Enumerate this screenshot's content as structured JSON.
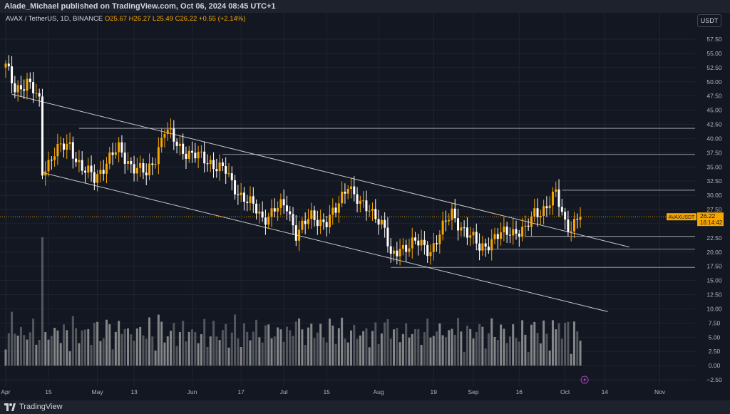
{
  "header": {
    "publisher_text": "Alade_Michael published on TradingView.com, Oct 06, 2024 08:45 UTC+1"
  },
  "symbol": {
    "title": "AVAX / TetherUS, 1D, BINANCE",
    "ohlc": "O25.67 H26.27 L25.49 C26.22 +0.55 (+2.14%)",
    "currency": "USDT"
  },
  "price_tag": {
    "name": "AVAXUSDT",
    "price": "26.22",
    "countdown": "16:14:42",
    "value": 26.22
  },
  "footer": {
    "brand": "TradingView"
  },
  "colors": {
    "background": "#131722",
    "up": "#f7a600",
    "down": "#ffffff",
    "price_line": "#f7a600",
    "channel": "#c8c8c8",
    "grid": "#1f2431"
  },
  "chart_data": {
    "type": "candlestick",
    "x_start": "2024-04-01",
    "y_axis": {
      "min": -2.5,
      "max": 57.5,
      "step": 2.5,
      "ticks": [
        "57.50",
        "55.00",
        "52.50",
        "50.00",
        "47.50",
        "45.00",
        "42.50",
        "40.00",
        "37.50",
        "35.00",
        "32.50",
        "30.00",
        "27.50",
        "25.00",
        "22.50",
        "20.00",
        "17.50",
        "15.00",
        "12.50",
        "10.00",
        "7.50",
        "5.00",
        "2.50",
        "0.00",
        "−2.50"
      ]
    },
    "x_ticks": [
      {
        "label": "Apr",
        "date": "2024-04-01"
      },
      {
        "label": "15",
        "date": "2024-04-15"
      },
      {
        "label": "May",
        "date": "2024-05-01"
      },
      {
        "label": "13",
        "date": "2024-05-13"
      },
      {
        "label": "Jun",
        "date": "2024-06-01"
      },
      {
        "label": "17",
        "date": "2024-06-17"
      },
      {
        "label": "Jul",
        "date": "2024-07-01"
      },
      {
        "label": "15",
        "date": "2024-07-15"
      },
      {
        "label": "Aug",
        "date": "2024-08-01"
      },
      {
        "label": "19",
        "date": "2024-08-19"
      },
      {
        "label": "Sep",
        "date": "2024-09-01"
      },
      {
        "label": "16",
        "date": "2024-09-16"
      },
      {
        "label": "Oct",
        "date": "2024-10-01"
      },
      {
        "label": "14",
        "date": "2024-10-14"
      },
      {
        "label": "Nov",
        "date": "2024-11-01"
      }
    ],
    "horizontal_levels": [
      {
        "label": "41.80",
        "value": 41.8,
        "start": "2024-04-25"
      },
      {
        "label": "37.20",
        "value": 37.2,
        "start": "2024-06-11"
      },
      {
        "label": "30.90",
        "value": 30.9,
        "start": "2024-09-30"
      },
      {
        "label": "22.80",
        "value": 22.8,
        "start": "2024-09-18"
      },
      {
        "label": "20.50",
        "value": 20.5,
        "start": "2024-09-02"
      },
      {
        "label": "17.30",
        "value": 17.3,
        "start": "2024-08-05"
      }
    ],
    "channel_lines": [
      {
        "start": {
          "date": "2024-04-03",
          "value": 47.8
        },
        "end": {
          "date": "2024-10-22",
          "value": 20.9
        }
      },
      {
        "start": {
          "date": "2024-04-13",
          "value": 34.0
        },
        "end": {
          "date": "2024-10-15",
          "value": 9.5
        }
      }
    ],
    "close_series": [
      {
        "date": "2024-04-01",
        "close": 52.5
      },
      {
        "date": "2024-04-04",
        "close": 49.0
      },
      {
        "date": "2024-04-08",
        "close": 49.8
      },
      {
        "date": "2024-04-12",
        "close": 46.5
      },
      {
        "date": "2024-04-13",
        "close": 34.5
      },
      {
        "date": "2024-04-17",
        "close": 37.5
      },
      {
        "date": "2024-04-22",
        "close": 39.0
      },
      {
        "date": "2024-04-26",
        "close": 34.5
      },
      {
        "date": "2024-04-30",
        "close": 33.0
      },
      {
        "date": "2024-05-04",
        "close": 36.0
      },
      {
        "date": "2024-05-08",
        "close": 38.0
      },
      {
        "date": "2024-05-13",
        "close": 35.0
      },
      {
        "date": "2024-05-17",
        "close": 33.5
      },
      {
        "date": "2024-05-20",
        "close": 37.0
      },
      {
        "date": "2024-05-23",
        "close": 41.5
      },
      {
        "date": "2024-05-27",
        "close": 39.0
      },
      {
        "date": "2024-06-01",
        "close": 37.0
      },
      {
        "date": "2024-06-07",
        "close": 36.0
      },
      {
        "date": "2024-06-12",
        "close": 34.0
      },
      {
        "date": "2024-06-14",
        "close": 32.0
      },
      {
        "date": "2024-06-19",
        "close": 29.0
      },
      {
        "date": "2024-06-24",
        "close": 26.0
      },
      {
        "date": "2024-06-28",
        "close": 27.5
      },
      {
        "date": "2024-07-02",
        "close": 28.0
      },
      {
        "date": "2024-07-05",
        "close": 23.5
      },
      {
        "date": "2024-07-10",
        "close": 26.0
      },
      {
        "date": "2024-07-15",
        "close": 25.5
      },
      {
        "date": "2024-07-18",
        "close": 27.0
      },
      {
        "date": "2024-07-22",
        "close": 32.5
      },
      {
        "date": "2024-07-26",
        "close": 28.0
      },
      {
        "date": "2024-07-31",
        "close": 27.0
      },
      {
        "date": "2024-08-03",
        "close": 24.0
      },
      {
        "date": "2024-08-05",
        "close": 18.5
      },
      {
        "date": "2024-08-08",
        "close": 21.0
      },
      {
        "date": "2024-08-13",
        "close": 21.5
      },
      {
        "date": "2024-08-18",
        "close": 20.5
      },
      {
        "date": "2024-08-22",
        "close": 24.0
      },
      {
        "date": "2024-08-25",
        "close": 27.0
      },
      {
        "date": "2024-08-30",
        "close": 23.0
      },
      {
        "date": "2024-09-03",
        "close": 21.0
      },
      {
        "date": "2024-09-09",
        "close": 22.5
      },
      {
        "date": "2024-09-13",
        "close": 24.0
      },
      {
        "date": "2024-09-18",
        "close": 23.5
      },
      {
        "date": "2024-09-21",
        "close": 27.0
      },
      {
        "date": "2024-09-25",
        "close": 28.0
      },
      {
        "date": "2024-09-28",
        "close": 30.0
      },
      {
        "date": "2024-10-01",
        "close": 25.5
      },
      {
        "date": "2024-10-03",
        "close": 24.5
      },
      {
        "date": "2024-10-06",
        "close": 26.22
      }
    ]
  }
}
